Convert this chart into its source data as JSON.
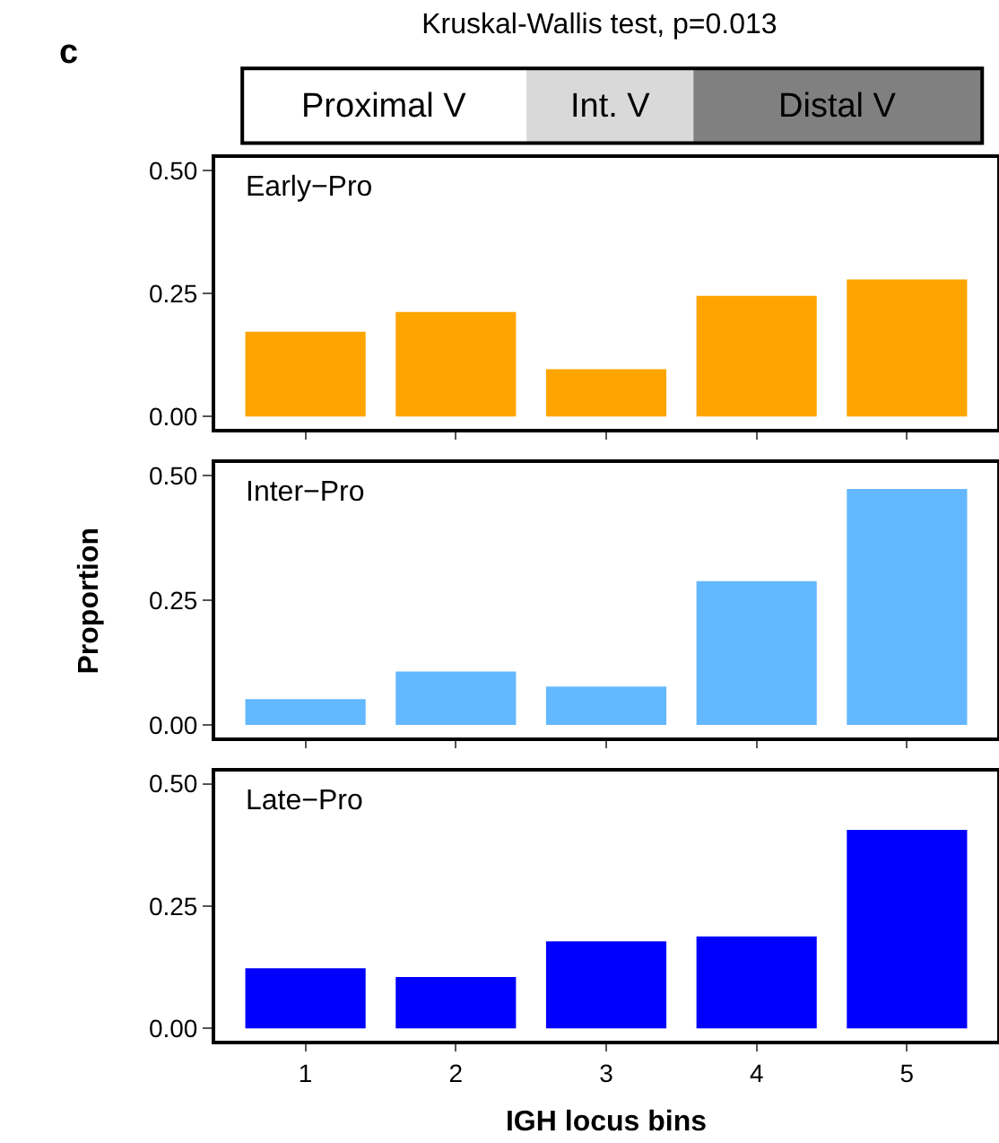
{
  "chart_data": [
    {
      "type": "bar",
      "title": "Kruskal-Wallis test, p=0.013",
      "subtitle": "Early−Pro",
      "annotations": [
        "c",
        "Proximal V",
        "Int. V",
        "Distal V"
      ],
      "categories": [
        "1",
        "2",
        "3",
        "4",
        "5"
      ],
      "values": [
        0.172,
        0.212,
        0.096,
        0.245,
        0.278
      ],
      "color": "#ffa500",
      "ylim": [
        -0.025,
        0.525
      ],
      "yticks": [
        {
          "value": 0,
          "label": "0.00"
        },
        {
          "value": 0.25,
          "label": "0.25"
        },
        {
          "value": 0.5,
          "label": "0.50"
        }
      ],
      "tick_labels": "y"
    },
    {
      "type": "bar",
      "subtitle": "Inter−Pro",
      "ylabel": "Proportion",
      "categories": [
        "1",
        "2",
        "3",
        "4",
        "5"
      ],
      "values": [
        0.052,
        0.107,
        0.077,
        0.288,
        0.473
      ],
      "color": "#63b8ff",
      "ylim": [
        -0.025,
        0.525
      ],
      "yticks": [
        {
          "value": 0,
          "label": "0.00"
        },
        {
          "value": 0.25,
          "label": "0.25"
        },
        {
          "value": 0.5,
          "label": "0.50"
        }
      ],
      "tick_labels": "y"
    },
    {
      "type": "bar",
      "subtitle": "Late−Pro",
      "xlabel": "IGH locus bins",
      "categories": [
        "1",
        "2",
        "3",
        "4",
        "5"
      ],
      "values": [
        0.123,
        0.105,
        0.178,
        0.188,
        0.406
      ],
      "color": "#0000ff",
      "ylim": [
        -0.025,
        0.525
      ],
      "yticks": [
        {
          "value": 0,
          "label": "0.00"
        },
        {
          "value": 0.25,
          "label": "0.25"
        },
        {
          "value": 0.5,
          "label": "0.50"
        }
      ]
    }
  ]
}
